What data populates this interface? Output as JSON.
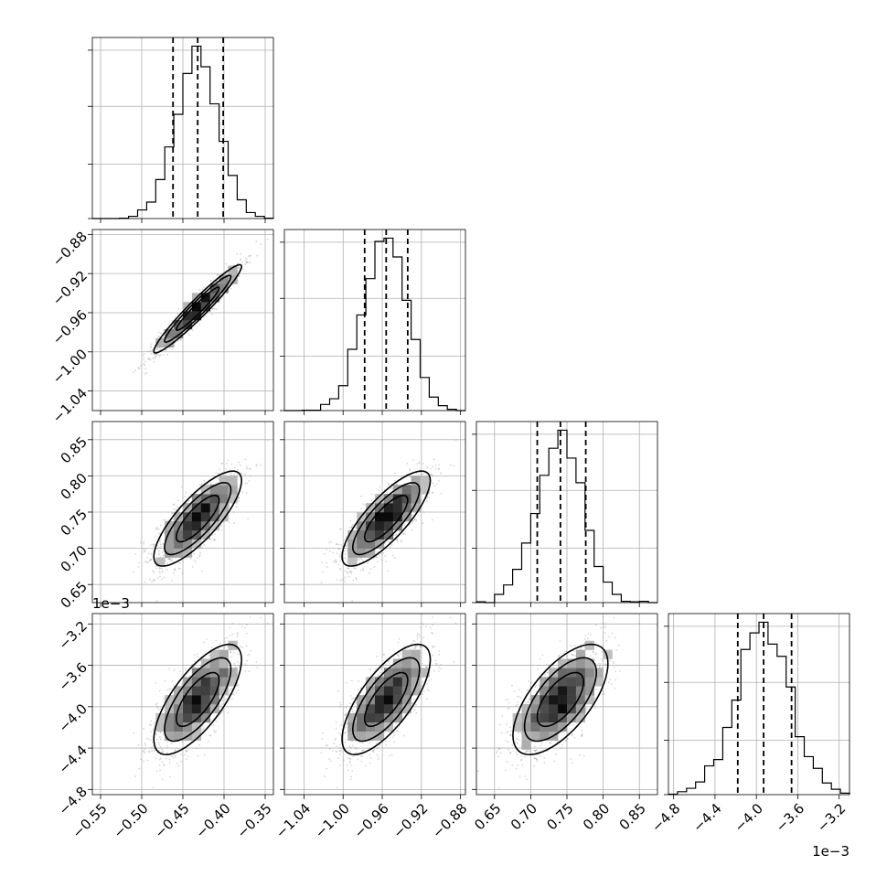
{
  "chart_data": {
    "type": "corner",
    "title": "",
    "parameters": [
      {
        "index": 0,
        "range": [
          -0.56,
          -0.34
        ],
        "ticks": [
          -0.55,
          -0.5,
          -0.45,
          -0.4,
          -0.35
        ],
        "tick_labels": [
          "−0.55",
          "−0.50",
          "−0.45",
          "−0.40",
          "−0.35"
        ],
        "offset_text": "",
        "mean": -0.432,
        "sd": 0.026,
        "quantiles": [
          -0.462,
          -0.432,
          -0.401
        ]
      },
      {
        "index": 1,
        "range": [
          -1.06,
          -0.875
        ],
        "ticks": [
          -1.04,
          -1.0,
          -0.96,
          -0.92,
          -0.88
        ],
        "tick_labels": [
          "−1.04",
          "−1.00",
          "−0.96",
          "−0.92",
          "−0.88"
        ],
        "offset_text": "",
        "mean": -0.956,
        "sd": 0.022,
        "quantiles": [
          -0.978,
          -0.956,
          -0.934
        ]
      },
      {
        "index": 2,
        "range": [
          0.625,
          0.875
        ],
        "ticks": [
          0.65,
          0.7,
          0.75,
          0.8,
          0.85
        ],
        "tick_labels": [
          "0.65",
          "0.70",
          "0.75",
          "0.80",
          "0.85"
        ],
        "offset_text": "",
        "mean": 0.741,
        "sd": 0.032,
        "quantiles": [
          0.709,
          0.741,
          0.776
        ]
      },
      {
        "index": 3,
        "range": [
          -4.85,
          -3.1
        ],
        "ticks": [
          -4.8,
          -4.4,
          -4.0,
          -3.6,
          -3.2
        ],
        "tick_labels": [
          "−4.8",
          "−4.4",
          "−4.0",
          "−3.6",
          "−3.2"
        ],
        "offset_text": "1e−3",
        "mean": -3.93,
        "sd": 0.26,
        "quantiles": [
          -4.18,
          -3.93,
          -3.66
        ]
      }
    ],
    "correlations": {
      "1-0": 0.96,
      "2-0": 0.8,
      "2-1": 0.8,
      "3-0": 0.72,
      "3-1": 0.72,
      "3-2": 0.65
    },
    "histogram_bins": 20,
    "grid": true,
    "legend": "none"
  }
}
